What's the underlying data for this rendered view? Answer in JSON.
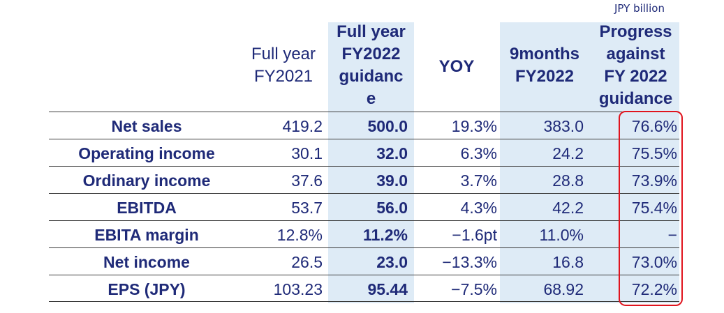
{
  "unit_label": "JPY  billion",
  "headers": {
    "fy2021": [
      "Full year",
      "FY2021"
    ],
    "guidance": [
      "Full year",
      "FY2022",
      "guidanc",
      "e"
    ],
    "yoy": [
      "YOY"
    ],
    "nine_months": [
      "9months",
      "FY2022"
    ],
    "progress": [
      "Progress",
      "against",
      "FY 2022",
      "guidance"
    ]
  },
  "rows": [
    {
      "label": "Net sales",
      "fy2021": "419.2",
      "guidance": "500.0",
      "yoy": "19.3%",
      "nine_months": "383.0",
      "progress": "76.6%"
    },
    {
      "label": "Operating income",
      "fy2021": "30.1",
      "guidance": "32.0",
      "yoy": "6.3%",
      "nine_months": "24.2",
      "progress": "75.5%"
    },
    {
      "label": "Ordinary income",
      "fy2021": "37.6",
      "guidance": "39.0",
      "yoy": "3.7%",
      "nine_months": "28.8",
      "progress": "73.9%"
    },
    {
      "label": "EBITDA",
      "fy2021": "53.7",
      "guidance": "56.0",
      "yoy": "4.3%",
      "nine_months": "42.2",
      "progress": "75.4%"
    },
    {
      "label": "EBITA margin",
      "fy2021": "12.8%",
      "guidance": "11.2%",
      "yoy": "−1.6pt",
      "nine_months": "11.0%",
      "progress": "−"
    },
    {
      "label": "Net income",
      "fy2021": "26.5",
      "guidance": "23.0",
      "yoy": "−13.3%",
      "nine_months": "16.8",
      "progress": "73.0%"
    },
    {
      "label": "EPS (JPY)",
      "fy2021": "103.23",
      "guidance": "95.44",
      "yoy": "−7.5%",
      "nine_months": "68.92",
      "progress": "72.2%"
    }
  ],
  "colors": {
    "text": "#1f2a78",
    "shade": "#deebf6",
    "highlight_border": "#e0141e",
    "rule": "#3a3a3a"
  }
}
